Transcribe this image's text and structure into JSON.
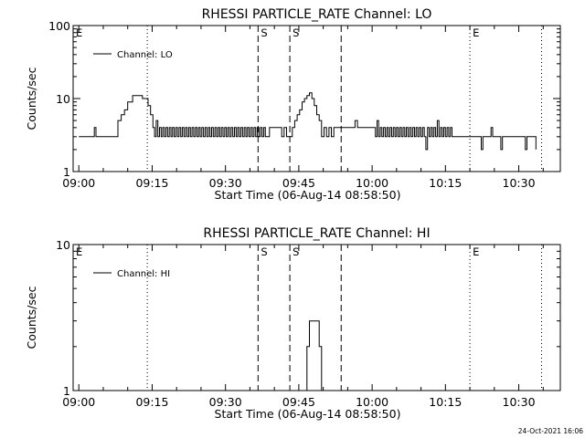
{
  "chart_data": [
    {
      "type": "line",
      "title": "RHESSI PARTICLE_RATE Channel: LO",
      "xlabel": "Start Time (06-Aug-14 08:58:50)",
      "ylabel": "Counts/sec",
      "y_scale": "log",
      "ylim": [
        1,
        100
      ],
      "y_ticks": [
        "1",
        "10",
        "100"
      ],
      "xlim": [
        "08:58:50",
        "10:38:30"
      ],
      "x_ticks": [
        "09:00",
        "09:15",
        "09:30",
        "09:45",
        "10:00",
        "10:15",
        "10:30"
      ],
      "legend": {
        "label": "Channel: LO",
        "placement": "top-left"
      },
      "markers": [
        {
          "label": "E",
          "time": "08:58:50",
          "style": "dotted"
        },
        {
          "label": "",
          "time": "09:14:00",
          "style": "dotted"
        },
        {
          "label": "S",
          "time": "09:36:40",
          "style": "dashed"
        },
        {
          "label": "S",
          "time": "09:43:10",
          "style": "dashed"
        },
        {
          "label": "",
          "time": "09:53:40",
          "style": "dashed"
        },
        {
          "label": "E",
          "time": "10:20:00",
          "style": "dotted"
        },
        {
          "label": "",
          "time": "10:34:40",
          "style": "dotted"
        }
      ],
      "series": [
        {
          "name": "Channel: LO",
          "points": [
            [
              "09:00:00",
              3
            ],
            [
              "09:02:50",
              3
            ],
            [
              "09:03:10",
              4
            ],
            [
              "09:03:30",
              3
            ],
            [
              "09:07:20",
              3
            ],
            [
              "09:08:00",
              5
            ],
            [
              "09:08:40",
              6
            ],
            [
              "09:09:20",
              7
            ],
            [
              "09:10:00",
              9
            ],
            [
              "09:11:00",
              11
            ],
            [
              "09:12:30",
              11
            ],
            [
              "09:13:00",
              10
            ],
            [
              "09:13:30",
              10
            ],
            [
              "09:14:10",
              8
            ],
            [
              "09:14:40",
              6
            ],
            [
              "09:15:10",
              4
            ],
            [
              "09:15:30",
              3
            ],
            [
              "09:15:50",
              5
            ],
            [
              "09:16:10",
              3
            ],
            [
              "09:16:30",
              4
            ],
            [
              "09:16:50",
              3
            ],
            [
              "09:17:10",
              4
            ],
            [
              "09:17:30",
              3
            ],
            [
              "09:17:50",
              4
            ],
            [
              "09:18:10",
              3
            ],
            [
              "09:18:30",
              4
            ],
            [
              "09:18:50",
              3
            ],
            [
              "09:19:10",
              4
            ],
            [
              "09:19:30",
              3
            ],
            [
              "09:19:50",
              4
            ],
            [
              "09:20:10",
              3
            ],
            [
              "09:20:30",
              4
            ],
            [
              "09:20:50",
              3
            ],
            [
              "09:21:10",
              4
            ],
            [
              "09:21:30",
              3
            ],
            [
              "09:21:50",
              4
            ],
            [
              "09:22:10",
              3
            ],
            [
              "09:22:30",
              4
            ],
            [
              "09:22:50",
              3
            ],
            [
              "09:23:10",
              4
            ],
            [
              "09:23:30",
              3
            ],
            [
              "09:23:50",
              4
            ],
            [
              "09:24:10",
              3
            ],
            [
              "09:24:30",
              4
            ],
            [
              "09:24:50",
              3
            ],
            [
              "09:25:10",
              4
            ],
            [
              "09:25:30",
              3
            ],
            [
              "09:25:50",
              4
            ],
            [
              "09:26:10",
              3
            ],
            [
              "09:26:30",
              4
            ],
            [
              "09:26:50",
              3
            ],
            [
              "09:27:10",
              4
            ],
            [
              "09:27:30",
              3
            ],
            [
              "09:27:50",
              4
            ],
            [
              "09:28:10",
              3
            ],
            [
              "09:28:30",
              4
            ],
            [
              "09:28:50",
              3
            ],
            [
              "09:29:10",
              4
            ],
            [
              "09:29:30",
              3
            ],
            [
              "09:29:50",
              4
            ],
            [
              "09:30:10",
              3
            ],
            [
              "09:30:30",
              4
            ],
            [
              "09:30:50",
              3
            ],
            [
              "09:31:10",
              4
            ],
            [
              "09:31:30",
              3
            ],
            [
              "09:31:50",
              4
            ],
            [
              "09:32:10",
              3
            ],
            [
              "09:32:30",
              4
            ],
            [
              "09:32:50",
              3
            ],
            [
              "09:33:10",
              4
            ],
            [
              "09:33:30",
              3
            ],
            [
              "09:33:50",
              4
            ],
            [
              "09:34:10",
              3
            ],
            [
              "09:34:30",
              4
            ],
            [
              "09:34:50",
              3
            ],
            [
              "09:35:10",
              4
            ],
            [
              "09:35:30",
              3
            ],
            [
              "09:35:50",
              4
            ],
            [
              "09:36:10",
              3
            ],
            [
              "09:36:30",
              4
            ],
            [
              "09:36:50",
              3
            ],
            [
              "09:37:10",
              4
            ],
            [
              "09:37:30",
              3
            ],
            [
              "09:37:50",
              4
            ],
            [
              "09:38:10",
              3
            ],
            [
              "09:39:00",
              4
            ],
            [
              "09:41:00",
              4
            ],
            [
              "09:41:30",
              3
            ],
            [
              "09:42:00",
              4
            ],
            [
              "09:42:30",
              3
            ],
            [
              "09:43:00",
              3
            ],
            [
              "09:43:40",
              4
            ],
            [
              "09:44:10",
              5
            ],
            [
              "09:44:40",
              6
            ],
            [
              "09:45:10",
              7
            ],
            [
              "09:45:40",
              9
            ],
            [
              "09:46:10",
              10
            ],
            [
              "09:46:40",
              11
            ],
            [
              "09:47:10",
              12
            ],
            [
              "09:47:40",
              10
            ],
            [
              "09:48:10",
              8
            ],
            [
              "09:48:40",
              6
            ],
            [
              "09:49:10",
              5
            ],
            [
              "09:49:40",
              3
            ],
            [
              "09:50:10",
              4
            ],
            [
              "09:50:40",
              3
            ],
            [
              "09:51:10",
              4
            ],
            [
              "09:51:40",
              3
            ],
            [
              "09:52:10",
              4
            ],
            [
              "09:53:00",
              4
            ],
            [
              "09:56:00",
              4
            ],
            [
              "09:56:30",
              5
            ],
            [
              "09:57:00",
              4
            ],
            [
              "10:00:20",
              4
            ],
            [
              "10:00:40",
              3
            ],
            [
              "10:01:00",
              5
            ],
            [
              "10:01:20",
              3
            ],
            [
              "10:01:40",
              4
            ],
            [
              "10:02:00",
              3
            ],
            [
              "10:02:20",
              4
            ],
            [
              "10:02:40",
              3
            ],
            [
              "10:03:00",
              4
            ],
            [
              "10:03:20",
              3
            ],
            [
              "10:03:40",
              4
            ],
            [
              "10:04:00",
              3
            ],
            [
              "10:04:20",
              4
            ],
            [
              "10:04:40",
              3
            ],
            [
              "10:05:00",
              4
            ],
            [
              "10:05:20",
              3
            ],
            [
              "10:05:40",
              4
            ],
            [
              "10:06:00",
              3
            ],
            [
              "10:06:20",
              4
            ],
            [
              "10:06:40",
              3
            ],
            [
              "10:07:00",
              4
            ],
            [
              "10:07:20",
              3
            ],
            [
              "10:07:40",
              4
            ],
            [
              "10:08:00",
              3
            ],
            [
              "10:08:20",
              4
            ],
            [
              "10:08:40",
              3
            ],
            [
              "10:09:00",
              4
            ],
            [
              "10:09:20",
              3
            ],
            [
              "10:09:40",
              4
            ],
            [
              "10:10:00",
              3
            ],
            [
              "10:10:20",
              4
            ],
            [
              "10:10:40",
              3
            ],
            [
              "10:11:00",
              2
            ],
            [
              "10:11:20",
              4
            ],
            [
              "10:11:40",
              3
            ],
            [
              "10:12:00",
              4
            ],
            [
              "10:12:20",
              3
            ],
            [
              "10:12:40",
              4
            ],
            [
              "10:13:00",
              3
            ],
            [
              "10:13:20",
              5
            ],
            [
              "10:13:40",
              3
            ],
            [
              "10:14:00",
              4
            ],
            [
              "10:14:20",
              3
            ],
            [
              "10:14:40",
              4
            ],
            [
              "10:15:00",
              3
            ],
            [
              "10:15:20",
              4
            ],
            [
              "10:15:40",
              3
            ],
            [
              "10:16:00",
              4
            ],
            [
              "10:16:20",
              3
            ],
            [
              "10:17:00",
              3
            ],
            [
              "10:20:00",
              3
            ],
            [
              "10:22:00",
              3
            ],
            [
              "10:22:20",
              2
            ],
            [
              "10:22:40",
              3
            ],
            [
              "10:24:00",
              3
            ],
            [
              "10:24:20",
              4
            ],
            [
              "10:24:40",
              3
            ],
            [
              "10:26:00",
              3
            ],
            [
              "10:26:20",
              2
            ],
            [
              "10:26:40",
              3
            ],
            [
              "10:31:00",
              3
            ],
            [
              "10:31:20",
              2
            ],
            [
              "10:31:40",
              3
            ],
            [
              "10:33:00",
              3
            ],
            [
              "10:33:30",
              2
            ]
          ]
        }
      ]
    },
    {
      "type": "line",
      "title": "RHESSI PARTICLE_RATE Channel: HI",
      "xlabel": "Start Time (06-Aug-14 08:58:50)",
      "ylabel": "Counts/sec",
      "y_scale": "log",
      "ylim": [
        1,
        10
      ],
      "y_ticks": [
        "1",
        "10"
      ],
      "xlim": [
        "08:58:50",
        "10:38:30"
      ],
      "x_ticks": [
        "09:00",
        "09:15",
        "09:30",
        "09:45",
        "10:00",
        "10:15",
        "10:30"
      ],
      "legend": {
        "label": "Channel: HI",
        "placement": "top-left"
      },
      "markers": [
        {
          "label": "E",
          "time": "08:58:50",
          "style": "dotted"
        },
        {
          "label": "",
          "time": "09:14:00",
          "style": "dotted"
        },
        {
          "label": "S",
          "time": "09:36:40",
          "style": "dashed"
        },
        {
          "label": "S",
          "time": "09:43:10",
          "style": "dashed"
        },
        {
          "label": "",
          "time": "09:53:40",
          "style": "dashed"
        },
        {
          "label": "E",
          "time": "10:20:00",
          "style": "dotted"
        },
        {
          "label": "",
          "time": "10:34:40",
          "style": "dotted"
        }
      ],
      "series": [
        {
          "name": "Channel: HI",
          "points": [
            [
              "09:46:10",
              1
            ],
            [
              "09:46:40",
              2
            ],
            [
              "09:47:10",
              3
            ],
            [
              "09:48:40",
              3
            ],
            [
              "09:49:10",
              2
            ],
            [
              "09:49:40",
              1
            ]
          ]
        }
      ]
    }
  ],
  "footer": {
    "timestamp": "24-Oct-2021 16:06"
  }
}
